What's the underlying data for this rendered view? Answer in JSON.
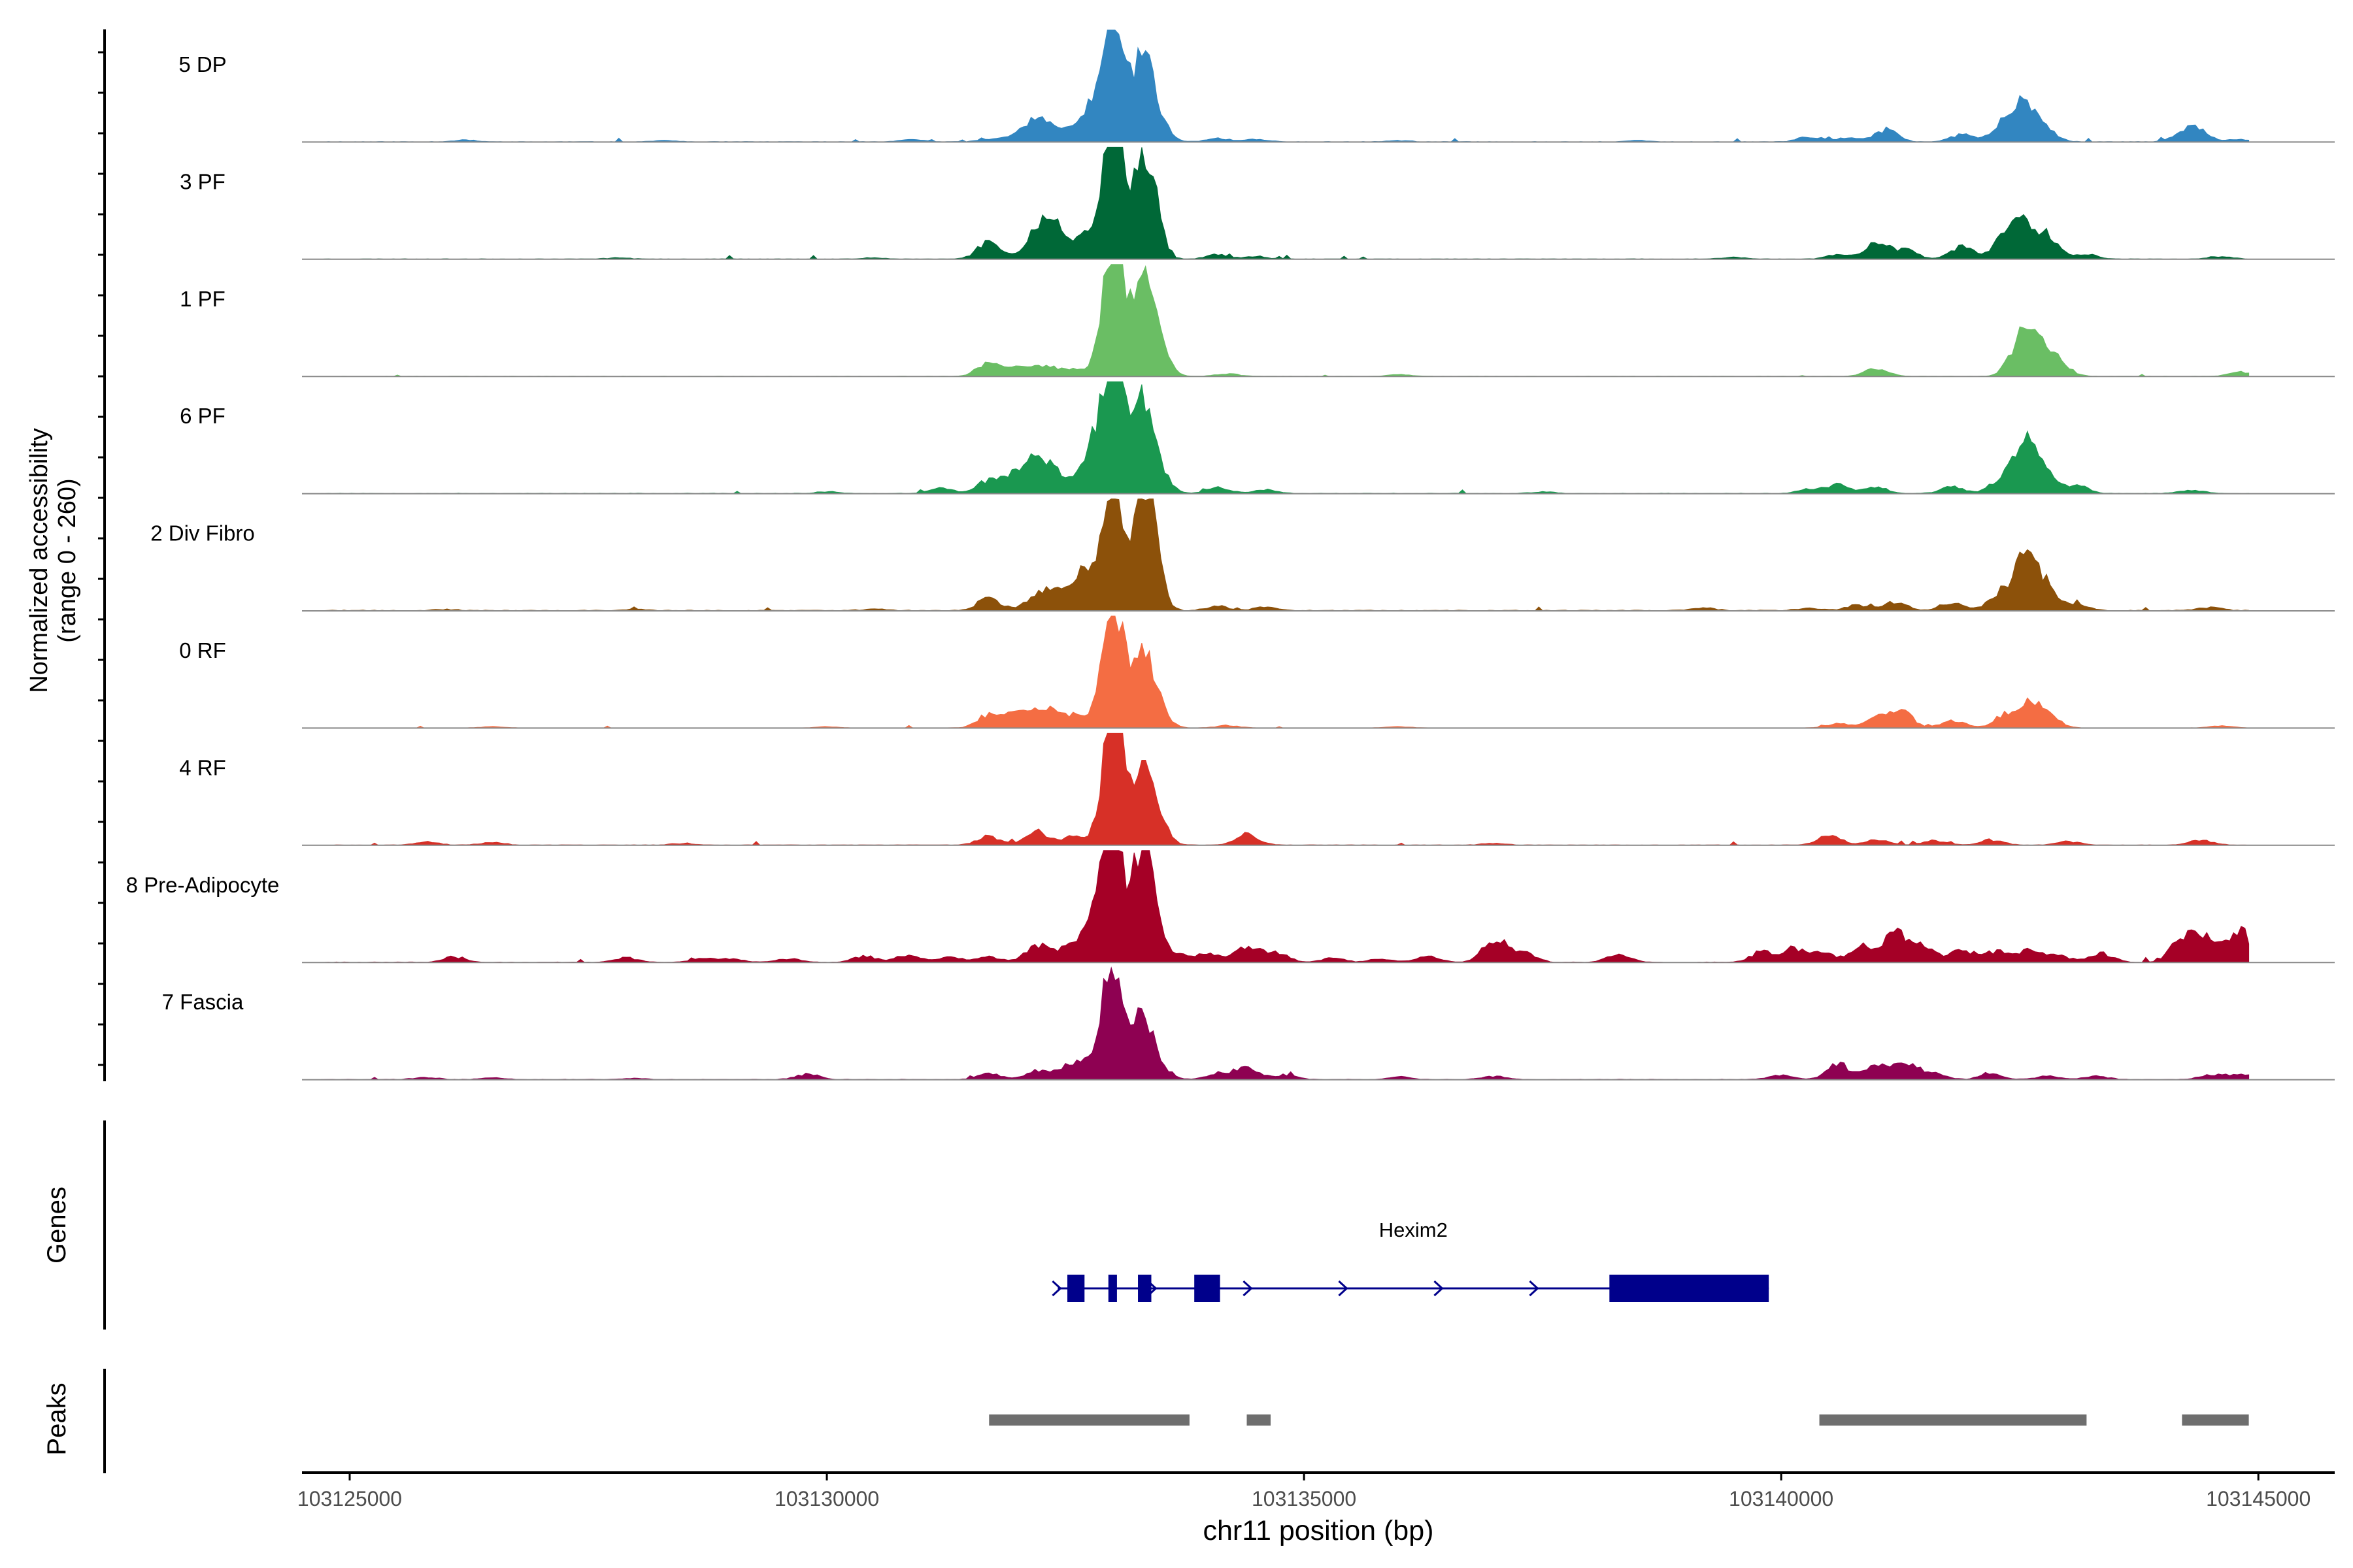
{
  "chart_data": {
    "type": "area",
    "title": "",
    "ylabel_line1": "Normalized accessibility",
    "ylabel_line2": "(range 0 - 260)",
    "xlabel": "chr11 position (bp)",
    "xlim": [
      103124500,
      103145800
    ],
    "ylim": [
      0,
      260
    ],
    "x_ticks": [
      {
        "value": 103125000,
        "label": "103125000"
      },
      {
        "value": 103130000,
        "label": "103130000"
      },
      {
        "value": 103135000,
        "label": "103135000"
      },
      {
        "value": 103140000,
        "label": "103140000"
      },
      {
        "value": 103145000,
        "label": "103145000"
      }
    ],
    "tracks": [
      {
        "name": "5 DP",
        "color": "#3286C1",
        "peaks": [
          [
            103126200,
            4
          ],
          [
            103128300,
            3
          ],
          [
            103130900,
            5
          ],
          [
            103131700,
            6
          ],
          [
            103132000,
            14
          ],
          [
            103132200,
            42
          ],
          [
            103132400,
            28
          ],
          [
            103132750,
            70
          ],
          [
            103132950,
            150
          ],
          [
            103133050,
            195
          ],
          [
            103133300,
            160
          ],
          [
            103133420,
            75
          ],
          [
            103134100,
            8
          ],
          [
            103134500,
            6
          ],
          [
            103136000,
            3
          ],
          [
            103138500,
            3
          ],
          [
            103140300,
            12
          ],
          [
            103140700,
            10
          ],
          [
            103141100,
            28
          ],
          [
            103141900,
            18
          ],
          [
            103142350,
            45
          ],
          [
            103142550,
            70
          ],
          [
            103142750,
            30
          ],
          [
            103144200,
            12
          ],
          [
            103144350,
            28
          ],
          [
            103144800,
            6
          ]
        ],
        "floor": 2,
        "noise": 3,
        "seed": 11
      },
      {
        "name": "3 PF",
        "color": "#006837",
        "peaks": [
          [
            103127800,
            3
          ],
          [
            103130500,
            3
          ],
          [
            103131700,
            40
          ],
          [
            103132200,
            58
          ],
          [
            103132400,
            70
          ],
          [
            103132700,
            45
          ],
          [
            103132950,
            190
          ],
          [
            103133050,
            205
          ],
          [
            103133300,
            185
          ],
          [
            103133420,
            110
          ],
          [
            103134100,
            10
          ],
          [
            103134500,
            6
          ],
          [
            103139500,
            4
          ],
          [
            103140600,
            10
          ],
          [
            103141000,
            38
          ],
          [
            103141300,
            20
          ],
          [
            103141900,
            30
          ],
          [
            103142350,
            50
          ],
          [
            103142550,
            75
          ],
          [
            103142800,
            45
          ],
          [
            103143200,
            10
          ],
          [
            103144600,
            6
          ]
        ],
        "floor": 2,
        "noise": 3,
        "seed": 23
      },
      {
        "name": "1 PF",
        "color": "#6ABE64",
        "peaks": [
          [
            103131700,
            28
          ],
          [
            103132000,
            20
          ],
          [
            103132300,
            25
          ],
          [
            103132600,
            15
          ],
          [
            103132950,
            200
          ],
          [
            103133050,
            210
          ],
          [
            103133300,
            185
          ],
          [
            103133420,
            100
          ],
          [
            103134200,
            6
          ],
          [
            103136000,
            4
          ],
          [
            103141000,
            20
          ],
          [
            103142500,
            60
          ],
          [
            103142650,
            85
          ],
          [
            103142900,
            35
          ],
          [
            103144800,
            10
          ]
        ],
        "floor": 1,
        "noise": 2,
        "seed": 37
      },
      {
        "name": "6 PF",
        "color": "#1A9850",
        "peaks": [
          [
            103130000,
            4
          ],
          [
            103131200,
            12
          ],
          [
            103131700,
            30
          ],
          [
            103132000,
            45
          ],
          [
            103132200,
            68
          ],
          [
            103132400,
            40
          ],
          [
            103132750,
            95
          ],
          [
            103132950,
            185
          ],
          [
            103133050,
            200
          ],
          [
            103133300,
            160
          ],
          [
            103133420,
            90
          ],
          [
            103134100,
            14
          ],
          [
            103134600,
            8
          ],
          [
            103137500,
            4
          ],
          [
            103140300,
            10
          ],
          [
            103140600,
            20
          ],
          [
            103141000,
            14
          ],
          [
            103141800,
            15
          ],
          [
            103142300,
            30
          ],
          [
            103142550,
            100
          ],
          [
            103142750,
            55
          ],
          [
            103143100,
            18
          ],
          [
            103144300,
            8
          ]
        ],
        "floor": 2,
        "noise": 3,
        "seed": 53
      },
      {
        "name": "2 Div Fibro",
        "color": "#8C510A",
        "peaks": [
          [
            103126000,
            3
          ],
          [
            103128000,
            3
          ],
          [
            103130500,
            4
          ],
          [
            103131700,
            30
          ],
          [
            103132200,
            28
          ],
          [
            103132400,
            38
          ],
          [
            103132700,
            90
          ],
          [
            103132950,
            165
          ],
          [
            103133050,
            160
          ],
          [
            103133300,
            230
          ],
          [
            103133420,
            140
          ],
          [
            103134100,
            10
          ],
          [
            103134600,
            8
          ],
          [
            103139200,
            6
          ],
          [
            103140300,
            6
          ],
          [
            103140800,
            12
          ],
          [
            103141200,
            20
          ],
          [
            103141800,
            20
          ],
          [
            103142300,
            45
          ],
          [
            103142550,
            120
          ],
          [
            103142750,
            70
          ],
          [
            103143100,
            15
          ],
          [
            103144500,
            8
          ]
        ],
        "floor": 3,
        "noise": 3,
        "seed": 71
      },
      {
        "name": "0 RF",
        "color": "#F46D43",
        "peaks": [
          [
            103126500,
            3
          ],
          [
            103130000,
            3
          ],
          [
            103131700,
            30
          ],
          [
            103132000,
            40
          ],
          [
            103132300,
            45
          ],
          [
            103132600,
            28
          ],
          [
            103132950,
            185
          ],
          [
            103133050,
            175
          ],
          [
            103133300,
            140
          ],
          [
            103133420,
            70
          ],
          [
            103134200,
            6
          ],
          [
            103136000,
            3
          ],
          [
            103140600,
            10
          ],
          [
            103141000,
            20
          ],
          [
            103141250,
            40
          ],
          [
            103141800,
            18
          ],
          [
            103142350,
            30
          ],
          [
            103142600,
            50
          ],
          [
            103142800,
            28
          ],
          [
            103144600,
            5
          ]
        ],
        "floor": 1,
        "noise": 2,
        "seed": 89
      },
      {
        "name": "4 RF",
        "color": "#D73027",
        "peaks": [
          [
            103125800,
            8
          ],
          [
            103126500,
            6
          ],
          [
            103128500,
            4
          ],
          [
            103131700,
            20
          ],
          [
            103132200,
            32
          ],
          [
            103132600,
            20
          ],
          [
            103132950,
            180
          ],
          [
            103133050,
            190
          ],
          [
            103133300,
            150
          ],
          [
            103133420,
            80
          ],
          [
            103134400,
            24
          ],
          [
            103137000,
            4
          ],
          [
            103140500,
            24
          ],
          [
            103141000,
            12
          ],
          [
            103141600,
            10
          ],
          [
            103142200,
            12
          ],
          [
            103143000,
            8
          ],
          [
            103144400,
            12
          ]
        ],
        "floor": 2,
        "noise": 3,
        "seed": 97
      },
      {
        "name": "8 Pre-Adipocyte",
        "color": "#A50026",
        "peaks": [
          [
            103126100,
            12
          ],
          [
            103127900,
            10
          ],
          [
            103128700,
            8
          ],
          [
            103129000,
            8
          ],
          [
            103129600,
            8
          ],
          [
            103130400,
            14
          ],
          [
            103130850,
            18
          ],
          [
            103131300,
            14
          ],
          [
            103131700,
            12
          ],
          [
            103132200,
            38
          ],
          [
            103132500,
            30
          ],
          [
            103132800,
            100
          ],
          [
            103132950,
            190
          ],
          [
            103133050,
            170
          ],
          [
            103133300,
            230
          ],
          [
            103133420,
            110
          ],
          [
            103133700,
            15
          ],
          [
            103134000,
            20
          ],
          [
            103134400,
            35
          ],
          [
            103134700,
            25
          ],
          [
            103135300,
            10
          ],
          [
            103135800,
            8
          ],
          [
            103136300,
            14
          ],
          [
            103137000,
            55
          ],
          [
            103137300,
            24
          ],
          [
            103138300,
            18
          ],
          [
            103139800,
            25
          ],
          [
            103140150,
            30
          ],
          [
            103140450,
            20
          ],
          [
            103140850,
            35
          ],
          [
            103141200,
            70
          ],
          [
            103141500,
            40
          ],
          [
            103141900,
            28
          ],
          [
            103142250,
            25
          ],
          [
            103142600,
            30
          ],
          [
            103142900,
            15
          ],
          [
            103143350,
            22
          ],
          [
            103144200,
            50
          ],
          [
            103144450,
            60
          ],
          [
            103144800,
            75
          ]
        ],
        "floor": 2,
        "noise": 4,
        "seed": 113
      },
      {
        "name": "7 Fascia",
        "color": "#8E0152",
        "peaks": [
          [
            103125800,
            5
          ],
          [
            103126500,
            4
          ],
          [
            103128000,
            3
          ],
          [
            103129800,
            12
          ],
          [
            103131700,
            14
          ],
          [
            103132200,
            20
          ],
          [
            103132500,
            22
          ],
          [
            103132700,
            40
          ],
          [
            103132950,
            165
          ],
          [
            103133050,
            150
          ],
          [
            103133300,
            120
          ],
          [
            103133420,
            55
          ],
          [
            103134100,
            14
          ],
          [
            103134400,
            30
          ],
          [
            103134800,
            10
          ],
          [
            103136000,
            6
          ],
          [
            103137000,
            8
          ],
          [
            103140000,
            10
          ],
          [
            103140600,
            35
          ],
          [
            103141000,
            30
          ],
          [
            103141300,
            40
          ],
          [
            103141600,
            14
          ],
          [
            103142200,
            12
          ],
          [
            103142800,
            8
          ],
          [
            103143300,
            8
          ],
          [
            103144500,
            10
          ],
          [
            103144800,
            12
          ]
        ],
        "floor": 2,
        "noise": 3,
        "seed": 131
      }
    ],
    "gene": {
      "name": "Hexim2",
      "start": 103132420,
      "end": 103139870,
      "strand": "+",
      "exons": [
        [
          103132520,
          103132700
        ],
        [
          103132950,
          103133040
        ],
        [
          103133260,
          103133400
        ],
        [
          103133850,
          103134120
        ],
        [
          103138200,
          103139870
        ]
      ]
    },
    "peaks_track": [
      [
        103131700,
        103133800
      ],
      [
        103134400,
        103134650
      ],
      [
        103140400,
        103143200
      ],
      [
        103144200,
        103144900
      ]
    ],
    "panel_labels": {
      "genes": "Genes",
      "peaks": "Peaks"
    }
  }
}
